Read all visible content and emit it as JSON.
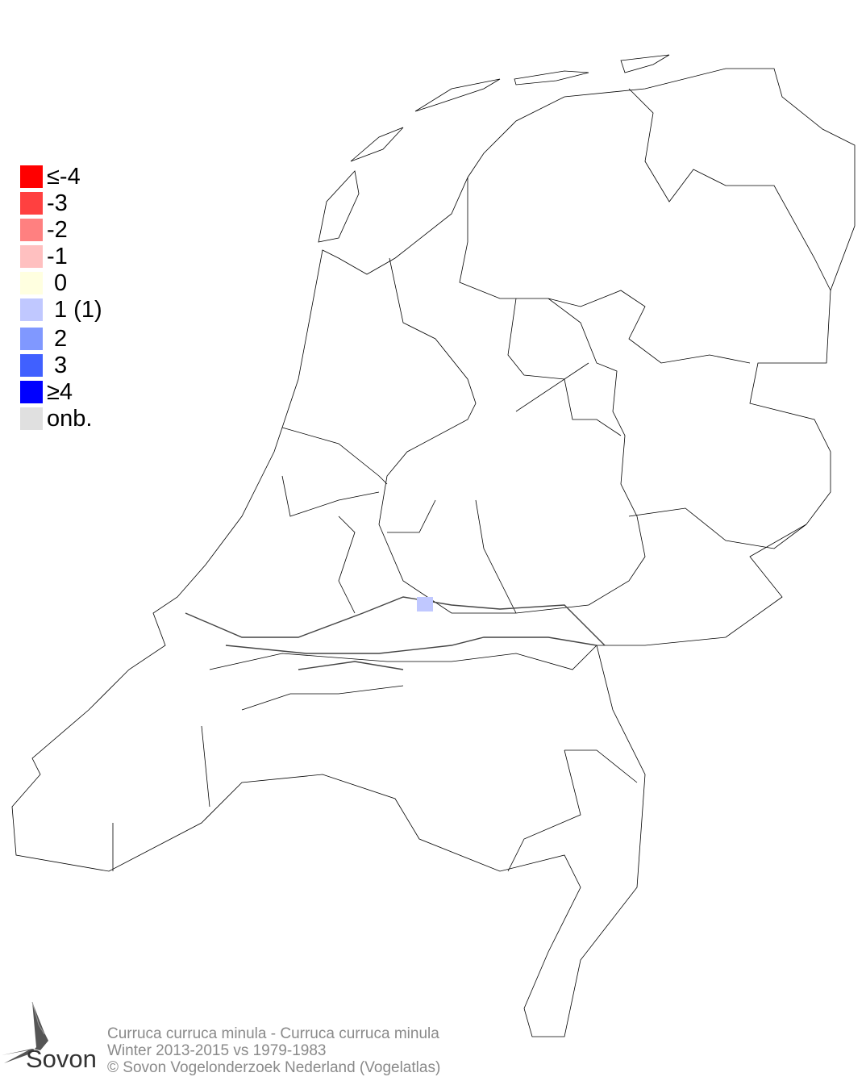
{
  "legend": {
    "items": [
      {
        "label": "≤-4",
        "color": "#ff0000"
      },
      {
        "label": "-3",
        "color": "#ff4040"
      },
      {
        "label": "-2",
        "color": "#ff8080"
      },
      {
        "label": "-1",
        "color": "#ffc0c0"
      },
      {
        "label": " 0",
        "color": "#ffffe0"
      },
      {
        "label": " 1 (1)",
        "color": "#c0c8ff"
      },
      {
        "label": " 2",
        "color": "#8098ff"
      },
      {
        "label": " 3",
        "color": "#4060ff"
      },
      {
        "label": "≥4",
        "color": "#0000ff"
      },
      {
        "label": "onb.",
        "color": "#e0e0e0"
      }
    ]
  },
  "map": {
    "region": "Netherlands",
    "highlighted_cells": [
      {
        "category": "1",
        "color": "#c0c8ff"
      }
    ]
  },
  "footer": {
    "line1": "Curruca curruca minula - Curruca curruca minula",
    "line2": "Winter 2013-2015 vs 1979-1983",
    "line3": "© Sovon Vogelonderzoek Nederland (Vogelatlas)"
  },
  "logo": {
    "text": "Sovon"
  }
}
